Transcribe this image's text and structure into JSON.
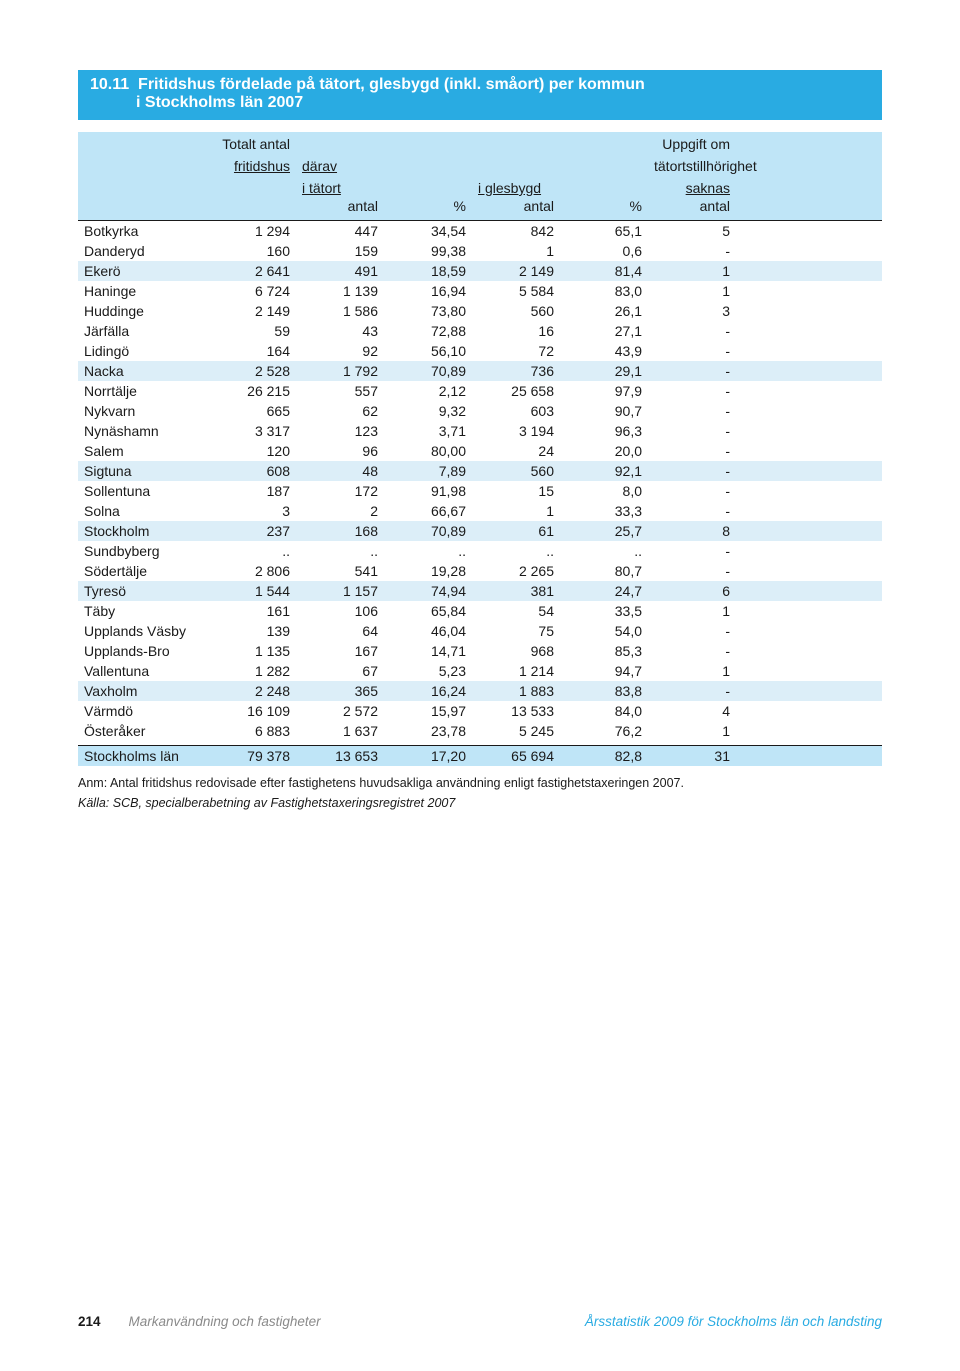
{
  "colors": {
    "title_bar_bg": "#29abe2",
    "title_bar_text": "#ffffff",
    "header_bg": "#bfe5f7",
    "highlight_bg": "#dceef8",
    "total_bg": "#bfe5f7",
    "body_text": "#1a1a1a",
    "footer_grey": "#8a8a8a",
    "footer_blue": "#29abe2",
    "rule_color": "#1a1a1a"
  },
  "title": {
    "number": "10.11",
    "line1": "Fritidshus fördelade på tätort, glesbygd (inkl. småort) per kommun",
    "line2": "i Stockholms län 2007"
  },
  "header": {
    "totalt_antal": "Totalt antal",
    "fritidshus": "fritidshus",
    "darav": "därav",
    "i_tatort": "i tätort",
    "i_glesbygd": "i glesbygd",
    "uppgift_om": "Uppgift om",
    "tatortstillhorighet": "tätortstillhörighet",
    "saknas": "saknas",
    "antal": "antal",
    "percent": "%"
  },
  "groups": [
    {
      "highlight_index": 2,
      "rows": [
        {
          "name": "Botkyrka",
          "total": "1 294",
          "t_antal": "447",
          "t_pct": "34,54",
          "g_antal": "842",
          "g_pct": "65,1",
          "saknas": "5"
        },
        {
          "name": "Danderyd",
          "total": "160",
          "t_antal": "159",
          "t_pct": "99,38",
          "g_antal": "1",
          "g_pct": "0,6",
          "saknas": "-"
        },
        {
          "name": "Ekerö",
          "total": "2 641",
          "t_antal": "491",
          "t_pct": "18,59",
          "g_antal": "2 149",
          "g_pct": "81,4",
          "saknas": "1"
        },
        {
          "name": "Haninge",
          "total": "6 724",
          "t_antal": "1 139",
          "t_pct": "16,94",
          "g_antal": "5 584",
          "g_pct": "83,0",
          "saknas": "1"
        },
        {
          "name": "Huddinge",
          "total": "2 149",
          "t_antal": "1 586",
          "t_pct": "73,80",
          "g_antal": "560",
          "g_pct": "26,1",
          "saknas": "3"
        }
      ]
    },
    {
      "highlight_index": 2,
      "rows": [
        {
          "name": "Järfälla",
          "total": "59",
          "t_antal": "43",
          "t_pct": "72,88",
          "g_antal": "16",
          "g_pct": "27,1",
          "saknas": "-"
        },
        {
          "name": "Lidingö",
          "total": "164",
          "t_antal": "92",
          "t_pct": "56,10",
          "g_antal": "72",
          "g_pct": "43,9",
          "saknas": "-"
        },
        {
          "name": "Nacka",
          "total": "2 528",
          "t_antal": "1 792",
          "t_pct": "70,89",
          "g_antal": "736",
          "g_pct": "29,1",
          "saknas": "-"
        },
        {
          "name": "Norrtälje",
          "total": "26 215",
          "t_antal": "557",
          "t_pct": "2,12",
          "g_antal": "25 658",
          "g_pct": "97,9",
          "saknas": "-"
        },
        {
          "name": "Nykvarn",
          "total": "665",
          "t_antal": "62",
          "t_pct": "9,32",
          "g_antal": "603",
          "g_pct": "90,7",
          "saknas": "-"
        }
      ]
    },
    {
      "highlight_index": 2,
      "rows": [
        {
          "name": "Nynäshamn",
          "total": "3 317",
          "t_antal": "123",
          "t_pct": "3,71",
          "g_antal": "3 194",
          "g_pct": "96,3",
          "saknas": "-"
        },
        {
          "name": "Salem",
          "total": "120",
          "t_antal": "96",
          "t_pct": "80,00",
          "g_antal": "24",
          "g_pct": "20,0",
          "saknas": "-"
        },
        {
          "name": "Sigtuna",
          "total": "608",
          "t_antal": "48",
          "t_pct": "7,89",
          "g_antal": "560",
          "g_pct": "92,1",
          "saknas": "-"
        },
        {
          "name": "Sollentuna",
          "total": "187",
          "t_antal": "172",
          "t_pct": "91,98",
          "g_antal": "15",
          "g_pct": "8,0",
          "saknas": "-"
        },
        {
          "name": "Solna",
          "total": "3",
          "t_antal": "2",
          "t_pct": "66,67",
          "g_antal": "1",
          "g_pct": "33,3",
          "saknas": "-"
        }
      ]
    },
    {
      "highlight_index": 0,
      "rows": [
        {
          "name": "Stockholm",
          "total": "237",
          "t_antal": "168",
          "t_pct": "70,89",
          "g_antal": "61",
          "g_pct": "25,7",
          "saknas": "8"
        }
      ]
    },
    {
      "highlight_index": 2,
      "rows": [
        {
          "name": "Sundbyberg",
          "total": "..",
          "t_antal": "..",
          "t_pct": "..",
          "g_antal": "..",
          "g_pct": "..",
          "saknas": "-"
        },
        {
          "name": "Södertälje",
          "total": "2 806",
          "t_antal": "541",
          "t_pct": "19,28",
          "g_antal": "2 265",
          "g_pct": "80,7",
          "saknas": "-"
        },
        {
          "name": "Tyresö",
          "total": "1 544",
          "t_antal": "1 157",
          "t_pct": "74,94",
          "g_antal": "381",
          "g_pct": "24,7",
          "saknas": "6"
        },
        {
          "name": "Täby",
          "total": "161",
          "t_antal": "106",
          "t_pct": "65,84",
          "g_antal": "54",
          "g_pct": "33,5",
          "saknas": "1"
        },
        {
          "name": "Upplands Väsby",
          "total": "139",
          "t_antal": "64",
          "t_pct": "46,04",
          "g_antal": "75",
          "g_pct": "54,0",
          "saknas": "-"
        }
      ]
    },
    {
      "highlight_index": 2,
      "rows": [
        {
          "name": "Upplands-Bro",
          "total": "1 135",
          "t_antal": "167",
          "t_pct": "14,71",
          "g_antal": "968",
          "g_pct": "85,3",
          "saknas": "-"
        },
        {
          "name": "Vallentuna",
          "total": "1 282",
          "t_antal": "67",
          "t_pct": "5,23",
          "g_antal": "1 214",
          "g_pct": "94,7",
          "saknas": "1"
        },
        {
          "name": "Vaxholm",
          "total": "2 248",
          "t_antal": "365",
          "t_pct": "16,24",
          "g_antal": "1 883",
          "g_pct": "83,8",
          "saknas": "-"
        },
        {
          "name": "Värmdö",
          "total": "16 109",
          "t_antal": "2 572",
          "t_pct": "15,97",
          "g_antal": "13 533",
          "g_pct": "84,0",
          "saknas": "4"
        },
        {
          "name": "Österåker",
          "total": "6 883",
          "t_antal": "1 637",
          "t_pct": "23,78",
          "g_antal": "5 245",
          "g_pct": "76,2",
          "saknas": "1"
        }
      ]
    }
  ],
  "total_row": {
    "name": "Stockholms län",
    "total": "79 378",
    "t_antal": "13 653",
    "t_pct": "17,20",
    "g_antal": "65 694",
    "g_pct": "82,8",
    "saknas": "31"
  },
  "note": "Anm: Antal fritidshus redovisade efter fastighetens huvudsakliga användning enligt fastighetstaxeringen 2007.",
  "source": "Källa: SCB, specialberabetning av Fastighetstaxeringsregistret 2007",
  "footer": {
    "page": "214",
    "section": "Markanvändning och fastigheter",
    "publication": "Årsstatistik 2009 för Stockholms län och landsting"
  }
}
